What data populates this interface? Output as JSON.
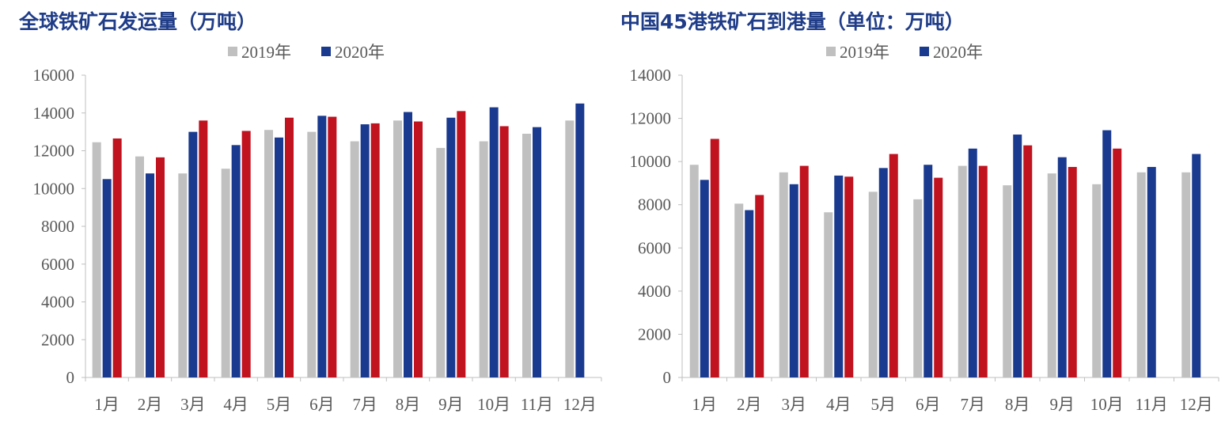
{
  "chart_data": [
    {
      "type": "bar",
      "title": "全球铁矿石发运量（万吨）",
      "categories": [
        "1月",
        "2月",
        "3月",
        "4月",
        "5月",
        "6月",
        "7月",
        "8月",
        "9月",
        "10月",
        "11月",
        "12月"
      ],
      "legend": [
        "2019年",
        "2020年"
      ],
      "legend_position": "top",
      "ylim": [
        0,
        16000
      ],
      "yticks": [
        0,
        2000,
        4000,
        6000,
        8000,
        10000,
        12000,
        14000,
        16000
      ],
      "grid": false,
      "colors": {
        "2019": "#c0c0c0",
        "2020_blue": "#1a3a8f",
        "2020_red": "#c0121f"
      },
      "series": [
        {
          "name": "2019年",
          "values": [
            12450,
            11700,
            10800,
            11050,
            13100,
            13000,
            12500,
            13600,
            12150,
            12500,
            12900,
            13600
          ]
        },
        {
          "name": "2020年",
          "values": [
            10500,
            10800,
            13000,
            12300,
            12700,
            13850,
            13400,
            14050,
            13750,
            14300,
            13250,
            14500
          ]
        },
        {
          "values": [
            12650,
            11650,
            13600,
            13050,
            13750,
            13800,
            13450,
            13550,
            14100,
            13300,
            null,
            null
          ]
        }
      ]
    },
    {
      "type": "bar",
      "title": "中国45港铁矿石到港量（单位：万吨）",
      "categories": [
        "1月",
        "2月",
        "3月",
        "4月",
        "5月",
        "6月",
        "7月",
        "8月",
        "9月",
        "10月",
        "11月",
        "12月"
      ],
      "legend": [
        "2019年",
        "2020年"
      ],
      "legend_position": "top",
      "ylim": [
        0,
        14000
      ],
      "yticks": [
        0,
        2000,
        4000,
        6000,
        8000,
        10000,
        12000,
        14000
      ],
      "grid": false,
      "colors": {
        "2019": "#c0c0c0",
        "2020_blue": "#1a3a8f",
        "2020_red": "#c0121f"
      },
      "series": [
        {
          "name": "2019年",
          "values": [
            9850,
            8050,
            9500,
            7650,
            8600,
            8250,
            9800,
            8900,
            9450,
            8950,
            9500,
            9500
          ]
        },
        {
          "name": "2020年",
          "values": [
            9150,
            7750,
            8950,
            9350,
            9700,
            9850,
            10600,
            11250,
            10200,
            11450,
            9750,
            10350
          ]
        },
        {
          "values": [
            11050,
            8450,
            9800,
            9300,
            10350,
            9250,
            9800,
            10750,
            9750,
            10600,
            null,
            null
          ]
        }
      ]
    }
  ]
}
